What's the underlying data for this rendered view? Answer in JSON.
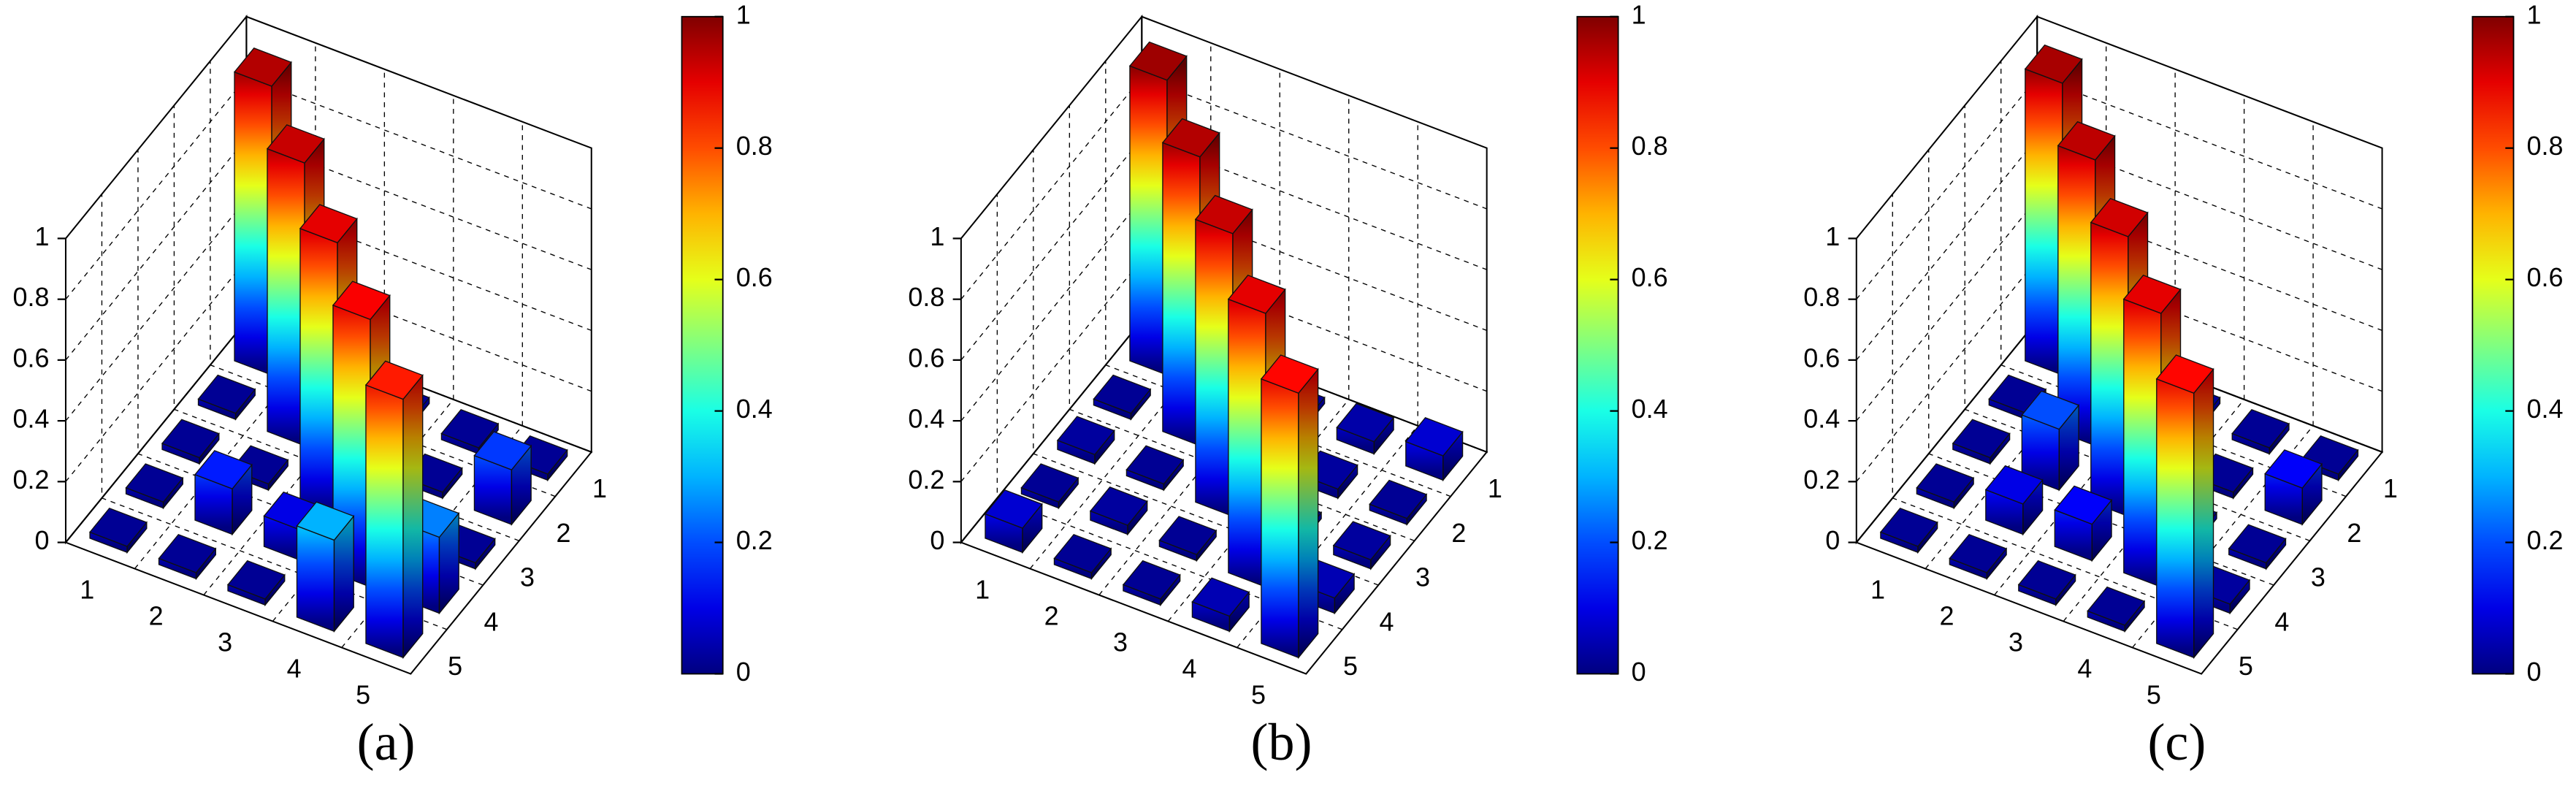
{
  "chart_data": [
    {
      "type": "bar3d",
      "caption": "(a)",
      "x_categories": [
        1,
        2,
        3,
        4,
        5
      ],
      "y_categories": [
        1,
        2,
        3,
        4,
        5
      ],
      "values": [
        [
          0.95,
          0.02,
          0.02,
          0.02,
          0.02
        ],
        [
          0.02,
          0.93,
          0.02,
          0.02,
          0.18
        ],
        [
          0.02,
          0.02,
          0.9,
          0.02,
          0.02
        ],
        [
          0.02,
          0.15,
          0.1,
          0.88,
          0.25
        ],
        [
          0.02,
          0.02,
          0.02,
          0.3,
          0.85
        ]
      ],
      "zlim": [
        0,
        1
      ],
      "zticks": [
        0,
        0.2,
        0.4,
        0.6,
        0.8,
        1
      ],
      "colormap": "jet",
      "clim": [
        0,
        1
      ],
      "cticks": [
        0,
        0.2,
        0.4,
        0.6,
        0.8,
        1
      ]
    },
    {
      "type": "bar3d",
      "caption": "(b)",
      "x_categories": [
        1,
        2,
        3,
        4,
        5
      ],
      "y_categories": [
        1,
        2,
        3,
        4,
        5
      ],
      "values": [
        [
          0.97,
          0.02,
          0.02,
          0.04,
          0.08
        ],
        [
          0.02,
          0.95,
          0.02,
          0.03,
          0.02
        ],
        [
          0.03,
          0.02,
          0.93,
          0.02,
          0.03
        ],
        [
          0.02,
          0.03,
          0.02,
          0.9,
          0.05
        ],
        [
          0.08,
          0.02,
          0.02,
          0.05,
          0.87
        ]
      ],
      "zlim": [
        0,
        1
      ],
      "zticks": [
        0,
        0.2,
        0.4,
        0.6,
        0.8,
        1
      ],
      "colormap": "jet",
      "clim": [
        0,
        1
      ],
      "cticks": [
        0,
        0.2,
        0.4,
        0.6,
        0.8,
        1
      ]
    },
    {
      "type": "bar3d",
      "caption": "(c)",
      "x_categories": [
        1,
        2,
        3,
        4,
        5
      ],
      "y_categories": [
        1,
        2,
        3,
        4,
        5
      ],
      "values": [
        [
          0.96,
          0.02,
          0.02,
          0.02,
          0.02
        ],
        [
          0.02,
          0.94,
          0.02,
          0.02,
          0.12
        ],
        [
          0.02,
          0.2,
          0.92,
          0.02,
          0.02
        ],
        [
          0.02,
          0.1,
          0.12,
          0.9,
          0.03
        ],
        [
          0.02,
          0.02,
          0.02,
          0.02,
          0.87
        ]
      ],
      "zlim": [
        0,
        1
      ],
      "zticks": [
        0,
        0.2,
        0.4,
        0.6,
        0.8,
        1
      ],
      "colormap": "jet",
      "clim": [
        0,
        1
      ],
      "cticks": [
        0,
        0.2,
        0.4,
        0.6,
        0.8,
        1
      ]
    }
  ]
}
